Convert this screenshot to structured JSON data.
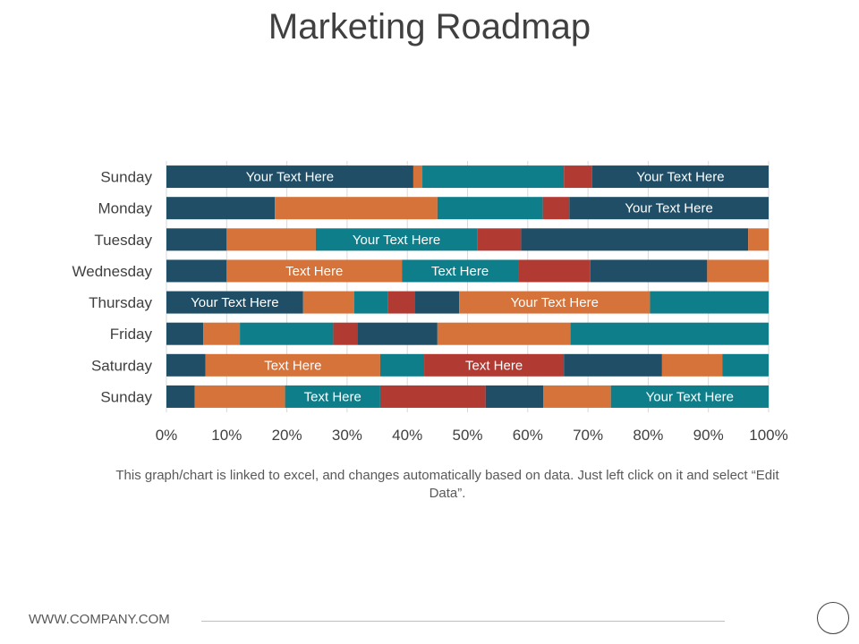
{
  "page": {
    "title": "Marketing Roadmap",
    "caption": "This graph/chart is linked to excel, and changes automatically based on data. Just left click on it and select “Edit Data”.",
    "footer_url": "WWW.COMPANY.COM"
  },
  "chart_data": {
    "type": "bar",
    "orientation": "horizontal",
    "stacking": "percent",
    "categories": [
      "Sunday",
      "Monday",
      "Tuesday",
      "Wednesday",
      "Thursday",
      "Friday",
      "Saturday",
      "Sunday"
    ],
    "xlim": [
      0,
      100
    ],
    "x_tick_labels": [
      "0%",
      "10%",
      "20%",
      "30%",
      "40%",
      "50%",
      "60%",
      "70%",
      "80%",
      "90%",
      "100%"
    ],
    "grid": true,
    "legend": "none",
    "colors": {
      "navy": "#1f4e66",
      "orange": "#d5733b",
      "teal": "#0e7f8a",
      "red": "#b13a33"
    },
    "rows": [
      {
        "segments": [
          {
            "color": "navy",
            "value": 41,
            "label": "Your Text Here"
          },
          {
            "color": "orange",
            "value": 1.5
          },
          {
            "color": "teal",
            "value": 23.5
          },
          {
            "color": "red",
            "value": 4.7
          },
          {
            "color": "navy",
            "value": 29.3,
            "label": "Your Text Here"
          }
        ]
      },
      {
        "segments": [
          {
            "color": "navy",
            "value": 18
          },
          {
            "color": "orange",
            "value": 27
          },
          {
            "color": "teal",
            "value": 17.5
          },
          {
            "color": "red",
            "value": 4.4
          },
          {
            "color": "navy",
            "value": 33.1,
            "label": "Your Text Here"
          }
        ]
      },
      {
        "segments": [
          {
            "color": "navy",
            "value": 10
          },
          {
            "color": "orange",
            "value": 14.8
          },
          {
            "color": "teal",
            "value": 26.8,
            "label": "Your Text Here"
          },
          {
            "color": "red",
            "value": 7.3
          },
          {
            "color": "navy",
            "value": 37.7
          },
          {
            "color": "orange",
            "value": 3.4
          }
        ]
      },
      {
        "segments": [
          {
            "color": "navy",
            "value": 10
          },
          {
            "color": "orange",
            "value": 29.1,
            "label": "Text Here"
          },
          {
            "color": "teal",
            "value": 19.3,
            "label": "Text Here"
          },
          {
            "color": "red",
            "value": 12
          },
          {
            "color": "navy",
            "value": 19.4
          },
          {
            "color": "orange",
            "value": 10.2
          }
        ]
      },
      {
        "segments": [
          {
            "color": "navy",
            "value": 22.7,
            "label": "Your Text Here"
          },
          {
            "color": "orange",
            "value": 8.5
          },
          {
            "color": "teal",
            "value": 5.6
          },
          {
            "color": "red",
            "value": 4.4
          },
          {
            "color": "navy",
            "value": 7.4
          },
          {
            "color": "orange",
            "value": 31.7,
            "label": "Your Text Here"
          },
          {
            "color": "teal",
            "value": 19.7
          }
        ]
      },
      {
        "segments": [
          {
            "color": "navy",
            "value": 6.1
          },
          {
            "color": "orange",
            "value": 6.1
          },
          {
            "color": "teal",
            "value": 15.5
          },
          {
            "color": "red",
            "value": 4
          },
          {
            "color": "navy",
            "value": 13.3
          },
          {
            "color": "orange",
            "value": 22.1
          },
          {
            "color": "teal",
            "value": 32.9
          }
        ]
      },
      {
        "segments": [
          {
            "color": "navy",
            "value": 6.5
          },
          {
            "color": "orange",
            "value": 29,
            "label": "Text Here"
          },
          {
            "color": "teal",
            "value": 7.3
          },
          {
            "color": "red",
            "value": 23.2,
            "label": "Text Here"
          },
          {
            "color": "navy",
            "value": 16.3
          },
          {
            "color": "orange",
            "value": 10
          },
          {
            "color": "teal",
            "value": 7.7
          }
        ]
      },
      {
        "segments": [
          {
            "color": "navy",
            "value": 4.7
          },
          {
            "color": "orange",
            "value": 15
          },
          {
            "color": "teal",
            "value": 15.8,
            "label": "Text Here"
          },
          {
            "color": "red",
            "value": 17.5
          },
          {
            "color": "navy",
            "value": 9.6
          },
          {
            "color": "orange",
            "value": 11.2
          },
          {
            "color": "teal",
            "value": 26.2,
            "label": "Your Text Here"
          }
        ]
      }
    ]
  }
}
